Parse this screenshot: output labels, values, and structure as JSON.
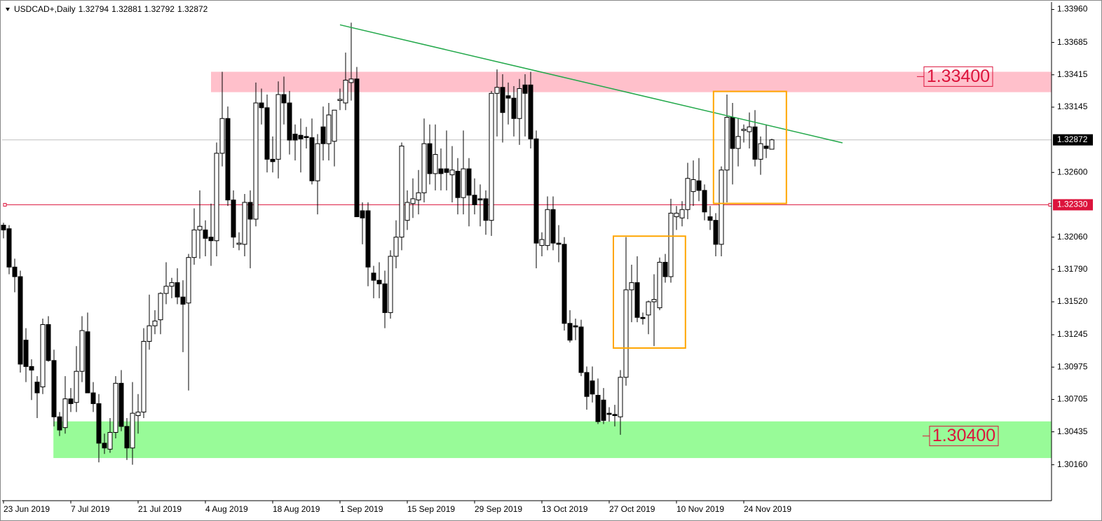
{
  "chart_data": {
    "type": "candlestick",
    "title": "USDCAD+,Daily",
    "categories": [
      "23 Jun 2019",
      null,
      null,
      null,
      null,
      null,
      null,
      null,
      null,
      null,
      null,
      null,
      "7 Jul 2019",
      null,
      null,
      null,
      null,
      null,
      null,
      null,
      null,
      null,
      null,
      null,
      "21 Jul 2019",
      null,
      null,
      null,
      null,
      null,
      null,
      null,
      null,
      null,
      null,
      null,
      "4 Aug 2019",
      null,
      null,
      null,
      null,
      null,
      null,
      null,
      null,
      null,
      null,
      null,
      "18 Aug 2019",
      null,
      null,
      null,
      null,
      null,
      null,
      null,
      null,
      null,
      null,
      null,
      "1 Sep 2019",
      null,
      null,
      null,
      null,
      null,
      null,
      null,
      null,
      null,
      null,
      null,
      "15 Sep 2019",
      null,
      null,
      null,
      null,
      null,
      null,
      null,
      null,
      null,
      null,
      null,
      "29 Sep 2019",
      null,
      null,
      null,
      null,
      null,
      null,
      null,
      null,
      null,
      null,
      null,
      "13 Oct 2019",
      null,
      null,
      null,
      null,
      null,
      null,
      null,
      null,
      null,
      null,
      null,
      "27 Oct 2019",
      null,
      null,
      null,
      null,
      null,
      null,
      null,
      null,
      null,
      null,
      null,
      "10 Nov 2019",
      null,
      null,
      null,
      null,
      null,
      null,
      null,
      null,
      null,
      null,
      null,
      "24 Nov 2019",
      null,
      null,
      null,
      null,
      null
    ],
    "open": [
      1.3216,
      1.3213,
      1.3181,
      1.3173,
      1.312,
      1.3098,
      1.3085,
      1.3081,
      1.3133,
      1.3103,
      1.3056,
      1.3047,
      1.3071,
      1.3068,
      1.3094,
      1.3127,
      1.3076,
      1.3067,
      1.3034,
      1.3029,
      1.3043,
      1.3084,
      1.3048,
      1.303,
      1.3057,
      1.306,
      1.3119,
      1.3132,
      1.3137,
      1.3159,
      1.3165,
      1.3168,
      1.3156,
      1.3151,
      1.3189,
      1.3212,
      1.3212,
      1.3206,
      1.3203,
      1.3276,
      1.3305,
      1.3237,
      1.32,
      1.32,
      1.3235,
      1.3221,
      1.3318,
      1.3314,
      1.3271,
      1.3271,
      1.3325,
      1.3318,
      1.3292,
      1.3291,
      1.329,
      1.3289,
      1.3253,
      1.3298,
      1.3284,
      1.3286,
      1.332,
      1.3318,
      1.3335,
      1.3338,
      1.3228,
      1.3228,
      1.3176,
      1.317,
      1.3167,
      1.3143,
      1.319,
      1.3206,
      1.322,
      1.3234,
      1.3237,
      1.3243,
      1.3284,
      1.3259,
      1.3263,
      1.3263,
      1.3258,
      1.3261,
      1.3239,
      1.3263,
      1.3241,
      1.3238,
      1.3238,
      1.322,
      1.3326,
      1.3331,
      1.3324,
      1.3322,
      1.3305,
      1.3333,
      1.3333,
      1.3288,
      1.3199,
      1.3199,
      1.3229,
      1.3201,
      1.32,
      1.3134,
      1.3132,
      1.3131,
      1.3093,
      1.3086,
      1.3074,
      1.307,
      1.3059,
      1.3058,
      1.3056,
      1.3089,
      1.3162,
      1.3168,
      1.3139,
      1.3141,
      1.3152,
      1.3147,
      1.3185,
      1.3173,
      1.3223,
      1.3222,
      1.3229,
      1.3244,
      1.3253,
      1.3245,
      1.3223,
      1.322,
      1.32,
      1.3262,
      1.3306,
      1.328,
      1.3295,
      1.3294,
      1.3298,
      1.3271,
      1.3282,
      1.32794
    ],
    "high": [
      1.3218,
      1.3216,
      1.3188,
      1.3178,
      1.313,
      1.3104,
      1.309,
      1.3138,
      1.314,
      1.3112,
      1.306,
      1.309,
      1.308,
      1.3115,
      1.314,
      1.3143,
      1.3085,
      1.3075,
      1.3042,
      1.3055,
      1.309,
      1.3095,
      1.3055,
      1.3085,
      1.3075,
      1.313,
      1.3158,
      1.3145,
      1.316,
      1.3185,
      1.3172,
      1.318,
      1.317,
      1.3192,
      1.323,
      1.3245,
      1.322,
      1.3234,
      1.3285,
      1.3344,
      1.3315,
      1.3245,
      1.321,
      1.3242,
      1.3245,
      1.3335,
      1.333,
      1.3325,
      1.329,
      1.3336,
      1.334,
      1.3328,
      1.33,
      1.3305,
      1.3298,
      1.3305,
      1.3292,
      1.3315,
      1.3318,
      1.3312,
      1.333,
      1.336,
      1.3385,
      1.3348,
      1.3235,
      1.3235,
      1.3182,
      1.3185,
      1.3178,
      1.3195,
      1.322,
      1.3285,
      1.3245,
      1.3255,
      1.3262,
      1.3305,
      1.33,
      1.33,
      1.328,
      1.3295,
      1.3282,
      1.3272,
      1.3295,
      1.3272,
      1.3255,
      1.325,
      1.3245,
      1.3328,
      1.3346,
      1.3342,
      1.3335,
      1.3332,
      1.3338,
      1.3342,
      1.3344,
      1.3295,
      1.321,
      1.324,
      1.324,
      1.3216,
      1.3206,
      1.3145,
      1.3138,
      1.3137,
      1.3098,
      1.3098,
      1.3088,
      1.308,
      1.3064,
      1.3066,
      1.3095,
      1.3206,
      1.3183,
      1.319,
      1.3143,
      1.3153,
      1.3175,
      1.3189,
      1.3192,
      1.3238,
      1.3232,
      1.3236,
      1.3268,
      1.327,
      1.3272,
      1.325,
      1.3232,
      1.3226,
      1.3265,
      1.3325,
      1.3318,
      1.3305,
      1.33,
      1.331,
      1.3312,
      1.329,
      1.33,
      1.32881
    ],
    "low": [
      1.3205,
      1.3175,
      1.316,
      1.3093,
      1.3085,
      1.307,
      1.3055,
      1.3075,
      1.3102,
      1.3048,
      1.304,
      1.3042,
      1.306,
      1.306,
      1.3085,
      1.3078,
      1.306,
      1.3018,
      1.3025,
      1.3026,
      1.3038,
      1.3044,
      1.302,
      1.3016,
      1.3042,
      1.3055,
      1.3112,
      1.3125,
      1.3125,
      1.315,
      1.3155,
      1.315,
      1.311,
      1.3078,
      1.3183,
      1.3188,
      1.319,
      1.3182,
      1.319,
      1.3265,
      1.3232,
      1.3197,
      1.3195,
      1.319,
      1.318,
      1.3215,
      1.33,
      1.326,
      1.326,
      1.3255,
      1.33,
      1.3275,
      1.327,
      1.326,
      1.328,
      1.325,
      1.3225,
      1.327,
      1.327,
      1.3265,
      1.3312,
      1.3312,
      1.332,
      1.3225,
      1.32,
      1.3165,
      1.3155,
      1.3155,
      1.313,
      1.3138,
      1.318,
      1.3195,
      1.3212,
      1.3222,
      1.3225,
      1.3235,
      1.325,
      1.3245,
      1.3245,
      1.3245,
      1.3235,
      1.3225,
      1.3225,
      1.3215,
      1.3225,
      1.3215,
      1.3208,
      1.3207,
      1.329,
      1.3285,
      1.33,
      1.329,
      1.3283,
      1.329,
      1.328,
      1.318,
      1.319,
      1.3195,
      1.3195,
      1.3185,
      1.3128,
      1.3118,
      1.312,
      1.309,
      1.3062,
      1.3068,
      1.305,
      1.305,
      1.3052,
      1.3048,
      1.3041,
      1.3082,
      1.3135,
      1.3135,
      1.3133,
      1.3125,
      1.3115,
      1.3145,
      1.3168,
      1.3168,
      1.3212,
      1.3215,
      1.3221,
      1.3232,
      1.3236,
      1.322,
      1.3212,
      1.319,
      1.319,
      1.3235,
      1.325,
      1.3265,
      1.3285,
      1.328,
      1.3265,
      1.3258,
      1.3272,
      1.32792
    ],
    "close": [
      1.3212,
      1.3181,
      1.3173,
      1.31,
      1.3098,
      1.3095,
      1.3076,
      1.3133,
      1.3103,
      1.3056,
      1.3045,
      1.3071,
      1.3067,
      1.3094,
      1.3128,
      1.3076,
      1.3067,
      1.3034,
      1.303,
      1.3043,
      1.3084,
      1.3048,
      1.303,
      1.3059,
      1.306,
      1.3119,
      1.3132,
      1.3136,
      1.3159,
      1.3165,
      1.3168,
      1.3156,
      1.315,
      1.3189,
      1.3212,
      1.3215,
      1.3205,
      1.3203,
      1.3276,
      1.3305,
      1.3237,
      1.3206,
      1.3201,
      1.3235,
      1.3221,
      1.3318,
      1.3314,
      1.3271,
      1.3269,
      1.3325,
      1.3318,
      1.3287,
      1.3287,
      1.3288,
      1.3289,
      1.3253,
      1.3284,
      1.3284,
      1.3308,
      1.3312,
      1.3321,
      1.3337,
      1.3338,
      1.3223,
      1.3222,
      1.3181,
      1.317,
      1.3167,
      1.3143,
      1.319,
      1.3206,
      1.3282,
      1.3235,
      1.3238,
      1.3243,
      1.3284,
      1.3259,
      1.3275,
      1.3259,
      1.326,
      1.3262,
      1.3239,
      1.3263,
      1.3241,
      1.3233,
      1.3237,
      1.322,
      1.3326,
      1.3331,
      1.331,
      1.3322,
      1.3305,
      1.333,
      1.3326,
      1.3288,
      1.3201,
      1.3204,
      1.3229,
      1.3201,
      1.32,
      1.3134,
      1.312,
      1.3131,
      1.3093,
      1.3073,
      1.3075,
      1.3052,
      1.3053,
      1.3058,
      1.3057,
      1.3089,
      1.3162,
      1.3168,
      1.3139,
      1.3138,
      1.3152,
      1.3154,
      1.3185,
      1.3173,
      1.3226,
      1.3226,
      1.3229,
      1.3255,
      1.3254,
      1.3245,
      1.3227,
      1.322,
      1.32,
      1.3262,
      1.3306,
      1.328,
      1.329,
      1.3296,
      1.3298,
      1.3271,
      1.3284,
      1.328,
      1.32872
    ],
    "ylim": [
      1.2986,
      1.3401
    ],
    "yticks": [
      {
        "value": 1.3396,
        "label": "1.33960"
      },
      {
        "value": 1.33685,
        "label": "1.33685"
      },
      {
        "value": 1.33415,
        "label": "1.33415"
      },
      {
        "value": 1.33145,
        "label": "1.33145"
      },
      {
        "value": 1.326,
        "label": "1.32600"
      },
      {
        "value": 1.3206,
        "label": "1.32060"
      },
      {
        "value": 1.3179,
        "label": "1.31790"
      },
      {
        "value": 1.3152,
        "label": "1.31520"
      },
      {
        "value": 1.31245,
        "label": "1.31245"
      },
      {
        "value": 1.30975,
        "label": "1.30975"
      },
      {
        "value": 1.30705,
        "label": "1.30705"
      },
      {
        "value": 1.30435,
        "label": "1.30435"
      },
      {
        "value": 1.3016,
        "label": "1.30160"
      }
    ],
    "current_price": 1.32872,
    "hline": {
      "value": 1.3233,
      "label": "1.32330",
      "color": "#dc143c"
    },
    "zones": [
      {
        "y0": 1.3327,
        "y1": 1.3344,
        "x0": 37,
        "color": "#ffc0cb",
        "level": 1.334,
        "label": "1.33400"
      },
      {
        "y0": 1.30216,
        "y1": 1.30522,
        "x0": 8.9,
        "color": "#98fb98",
        "level": 1.304,
        "label": "1.30400"
      }
    ],
    "trendline": {
      "x": [
        60,
        149.6
      ],
      "y": [
        1.33832,
        1.32847
      ],
      "color": "#22a84a"
    },
    "boxes": [
      {
        "x0": 108.75,
        "x1": 121.6,
        "y0": 1.31134,
        "y1": 1.32068,
        "color": "#ffa500"
      },
      {
        "x0": 126.6,
        "x1": 139.6,
        "y0": 1.32341,
        "y1": 1.33276,
        "color": "#ffa500"
      }
    ]
  }
}
